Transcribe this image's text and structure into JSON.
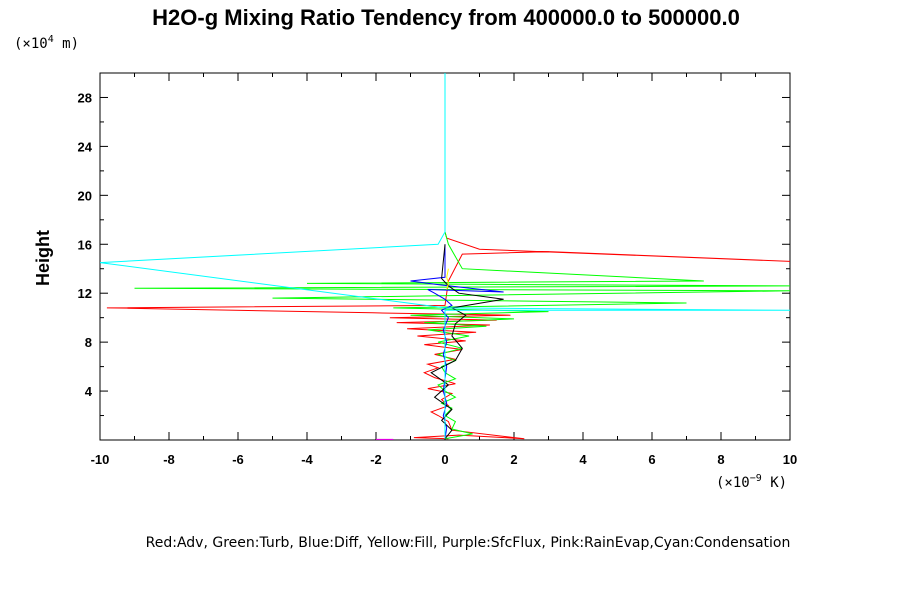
{
  "chart_data": {
    "type": "line",
    "title": "H2O-g Mixing Ratio Tendency from 400000.0 to 500000.0",
    "y_unit_prefix": "(×10",
    "y_unit_exp": "4",
    "y_unit_suffix": " m)",
    "x_unit_prefix": "(×10",
    "x_unit_exp": "−9",
    "x_unit_suffix": " K)",
    "ylabel": "Height",
    "xlabel": "",
    "xlim": [
      -10,
      10
    ],
    "ylim": [
      0,
      30
    ],
    "x_ticks": [
      -10,
      -8,
      -6,
      -4,
      -2,
      0,
      2,
      4,
      6,
      8,
      10
    ],
    "x_tick_labels": [
      "-10",
      "-8",
      "-6",
      "-4",
      "-2",
      "0",
      "2",
      "4",
      "6",
      "8",
      "10"
    ],
    "y_ticks": [
      4,
      8,
      12,
      16,
      20,
      24,
      28
    ],
    "y_tick_labels": [
      "4",
      "8",
      "12",
      "16",
      "20",
      "24",
      "28"
    ],
    "legend_text": "Red:Adv, Green:Turb, Blue:Diff, Yellow:Fill, Purple:SfcFlux, Pink:RainEvap,Cyan:Condensation",
    "legend_placement": "bottom",
    "grid": false,
    "series": [
      {
        "color": "#ff0000",
        "points": [
          [
            0.1,
            0.1
          ],
          [
            -0.9,
            0.2
          ],
          [
            0.4,
            0.4
          ],
          [
            2.3,
            0.1
          ],
          [
            0.2,
            0.8
          ],
          [
            0.1,
            1.5
          ],
          [
            -0.2,
            2
          ],
          [
            -0.4,
            2.3
          ],
          [
            0.1,
            2.8
          ],
          [
            -0.1,
            3.3
          ],
          [
            0.2,
            3.8
          ],
          [
            -0.5,
            4.2
          ],
          [
            0.3,
            4.6
          ],
          [
            -0.3,
            5.1
          ],
          [
            -0.6,
            5.5
          ],
          [
            -0.2,
            5.9
          ],
          [
            -0.5,
            6.2
          ],
          [
            0.3,
            6.6
          ],
          [
            -0.3,
            7
          ],
          [
            0.5,
            7.4
          ],
          [
            -0.6,
            7.8
          ],
          [
            0.6,
            8.1
          ],
          [
            -0.8,
            8.5
          ],
          [
            0.9,
            8.8
          ],
          [
            -1.1,
            9.1
          ],
          [
            1.3,
            9.4
          ],
          [
            -1.4,
            9.6
          ],
          [
            1.5,
            9.8
          ],
          [
            -1.6,
            10.0
          ],
          [
            1.9,
            10.2
          ],
          [
            -2.1,
            10.4
          ],
          [
            -9.8,
            10.8
          ],
          [
            0.0,
            11.0
          ],
          [
            0.1,
            13.0
          ],
          [
            0.5,
            15.2
          ],
          [
            3.0,
            15.4
          ],
          [
            10,
            14.6
          ],
          [
            1.0,
            15.6
          ],
          [
            0.05,
            16.5
          ],
          [
            0,
            17
          ]
        ]
      },
      {
        "color": "#00ff00",
        "points": [
          [
            0.0,
            0.1
          ],
          [
            0.8,
            0.5
          ],
          [
            0.2,
            0.9
          ],
          [
            0.3,
            1.5
          ],
          [
            0.0,
            2
          ],
          [
            0.2,
            2.6
          ],
          [
            -0.1,
            3.0
          ],
          [
            0.3,
            3.5
          ],
          [
            0.0,
            4
          ],
          [
            -0.2,
            4.5
          ],
          [
            0.3,
            5
          ],
          [
            0.0,
            5.5
          ],
          [
            -0.1,
            6
          ],
          [
            0.3,
            6.5
          ],
          [
            -0.2,
            7
          ],
          [
            0.5,
            7.5
          ],
          [
            -0.2,
            8
          ],
          [
            0.7,
            8.5
          ],
          [
            -0.5,
            9
          ],
          [
            1.2,
            9.3
          ],
          [
            -0.6,
            9.6
          ],
          [
            2.0,
            9.9
          ],
          [
            -1.0,
            10.2
          ],
          [
            3.0,
            10.5
          ],
          [
            -1.5,
            10.8
          ],
          [
            7.0,
            11.2
          ],
          [
            -5.0,
            11.6
          ],
          [
            10,
            12.2
          ],
          [
            -9.0,
            12.4
          ],
          [
            10,
            12.6
          ],
          [
            -4.0,
            12.8
          ],
          [
            7.5,
            13.0
          ],
          [
            0.5,
            14.0
          ],
          [
            0.1,
            16
          ],
          [
            0,
            17
          ]
        ]
      },
      {
        "color": "#0000ff",
        "points": [
          [
            0.0,
            0.1
          ],
          [
            0.05,
            1
          ],
          [
            -0.05,
            2
          ],
          [
            0.05,
            3
          ],
          [
            -0.05,
            4
          ],
          [
            0.0,
            5
          ],
          [
            0.05,
            6
          ],
          [
            -0.05,
            7
          ],
          [
            0.05,
            8
          ],
          [
            -0.05,
            9
          ],
          [
            0.1,
            10
          ],
          [
            -0.1,
            10.6
          ],
          [
            0.2,
            11
          ],
          [
            0.0,
            11.5
          ],
          [
            -0.3,
            12
          ],
          [
            -0.5,
            12.3
          ],
          [
            1.7,
            12.1
          ],
          [
            -0.2,
            12.7
          ],
          [
            -1.0,
            13.0
          ],
          [
            0.0,
            13.3
          ],
          [
            0.0,
            16
          ]
        ]
      },
      {
        "color": "#000000",
        "points": [
          [
            0.0,
            0.1
          ],
          [
            0.2,
            0.8
          ],
          [
            -0.1,
            1.6
          ],
          [
            0.2,
            2.5
          ],
          [
            -0.3,
            3.5
          ],
          [
            0.1,
            4.5
          ],
          [
            -0.4,
            5.5
          ],
          [
            0.3,
            6.5
          ],
          [
            0.5,
            7.5
          ],
          [
            0.2,
            8.5
          ],
          [
            0.3,
            9.5
          ],
          [
            0.6,
            10.2
          ],
          [
            0.2,
            10.8
          ],
          [
            1.7,
            11.5
          ],
          [
            0.4,
            12.0
          ],
          [
            0.1,
            12.6
          ],
          [
            -0.1,
            13.2
          ],
          [
            0.0,
            16
          ]
        ]
      },
      {
        "color": "#ffff00",
        "points": [
          [
            0.05,
            12.3
          ],
          [
            0.1,
            12.8
          ],
          [
            0.05,
            13.3
          ],
          [
            0.1,
            14.0
          ]
        ]
      },
      {
        "color": "#ff00ff",
        "points": [
          [
            -2.0,
            0.05
          ],
          [
            -1.5,
            0.05
          ]
        ]
      },
      {
        "color": "#00ffff",
        "points": [
          [
            0.0,
            0.1
          ],
          [
            0.0,
            10.6
          ],
          [
            10,
            10.6
          ],
          [
            0.0,
            10.8
          ],
          [
            -10,
            14.5
          ],
          [
            -0.2,
            16.0
          ],
          [
            0.0,
            17.0
          ],
          [
            0.0,
            30
          ]
        ]
      }
    ]
  }
}
